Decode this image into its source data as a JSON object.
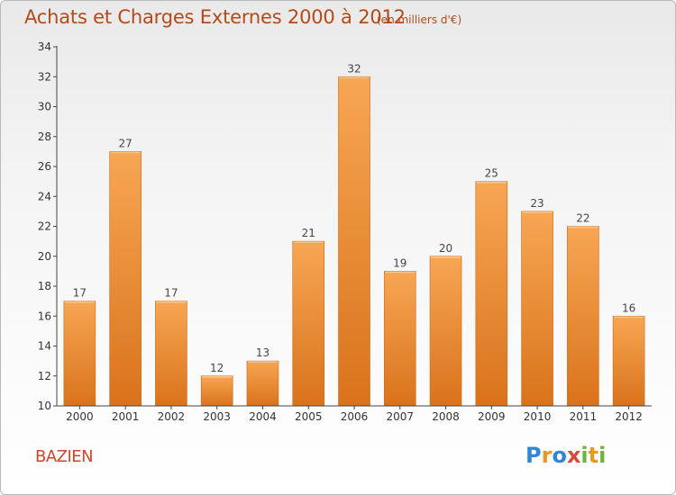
{
  "header": {
    "title": "Achats et Charges Externes 2000 à 2012",
    "subtitle": "(en milliers d'€)"
  },
  "footer": {
    "commune": "BAZIEN",
    "logo_letters": [
      "P",
      "r",
      "o",
      "x",
      "i",
      "t",
      "i"
    ],
    "logo_colors": [
      "#2f86d6",
      "#e8971f",
      "#2f86d6",
      "#d84a3a",
      "#6cb33f",
      "#e8971f",
      "#6cb33f"
    ]
  },
  "colors": {
    "bar_top": "#f7a654",
    "bar_bottom": "#d9731b",
    "bar_edge": "#c96a18",
    "axis": "#444444",
    "title": "#b34a18"
  },
  "chart_data": {
    "type": "bar",
    "title": "Achats et Charges Externes 2000 à 2012",
    "subtitle": "(en milliers d'€)",
    "xlabel": "",
    "ylabel": "",
    "categories": [
      "2000",
      "2001",
      "2002",
      "2003",
      "2004",
      "2005",
      "2006",
      "2007",
      "2008",
      "2009",
      "2010",
      "2011",
      "2012"
    ],
    "values": [
      17,
      27,
      17,
      12,
      13,
      21,
      32,
      19,
      20,
      25,
      23,
      22,
      16
    ],
    "ylim": [
      10,
      34
    ],
    "yticks": [
      10,
      12,
      14,
      16,
      18,
      20,
      22,
      24,
      26,
      28,
      30,
      32,
      34
    ],
    "grid": false,
    "legend": "none"
  }
}
